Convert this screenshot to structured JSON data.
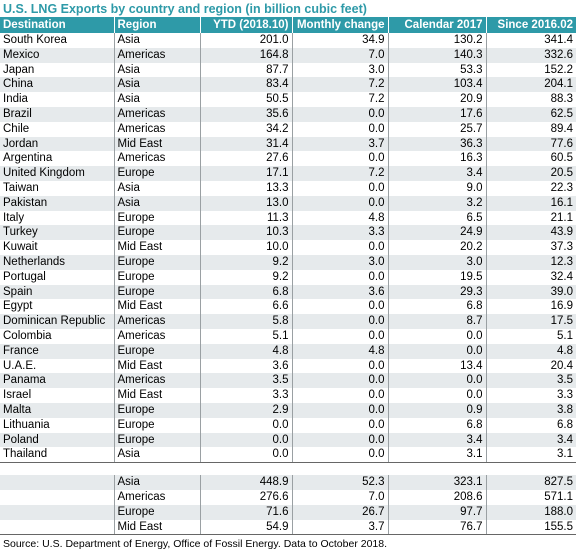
{
  "title": "U.S. LNG Exports by country and region (in billion cubic feet)",
  "headers": [
    "Destination",
    "Region",
    "YTD (2018.10)",
    "Monthly change",
    "Calendar 2017",
    "Since 2016.02"
  ],
  "rows": [
    [
      "South Korea",
      "Asia",
      "201.0",
      "34.9",
      "130.2",
      "341.4"
    ],
    [
      "Mexico",
      "Americas",
      "164.8",
      "7.0",
      "140.3",
      "332.6"
    ],
    [
      "Japan",
      "Asia",
      "87.7",
      "3.0",
      "53.3",
      "152.2"
    ],
    [
      "China",
      "Asia",
      "83.4",
      "7.2",
      "103.4",
      "204.1"
    ],
    [
      "India",
      "Asia",
      "50.5",
      "7.2",
      "20.9",
      "88.3"
    ],
    [
      "Brazil",
      "Americas",
      "35.6",
      "0.0",
      "17.6",
      "62.5"
    ],
    [
      "Chile",
      "Americas",
      "34.2",
      "0.0",
      "25.7",
      "89.4"
    ],
    [
      "Jordan",
      "Mid East",
      "31.4",
      "3.7",
      "36.3",
      "77.6"
    ],
    [
      "Argentina",
      "Americas",
      "27.6",
      "0.0",
      "16.3",
      "60.5"
    ],
    [
      "United Kingdom",
      "Europe",
      "17.1",
      "7.2",
      "3.4",
      "20.5"
    ],
    [
      "Taiwan",
      "Asia",
      "13.3",
      "0.0",
      "9.0",
      "22.3"
    ],
    [
      "Pakistan",
      "Asia",
      "13.0",
      "0.0",
      "3.2",
      "16.1"
    ],
    [
      "Italy",
      "Europe",
      "11.3",
      "4.8",
      "6.5",
      "21.1"
    ],
    [
      "Turkey",
      "Europe",
      "10.3",
      "3.3",
      "24.9",
      "43.9"
    ],
    [
      "Kuwait",
      "Mid East",
      "10.0",
      "0.0",
      "20.2",
      "37.3"
    ],
    [
      "Netherlands",
      "Europe",
      "9.2",
      "3.0",
      "3.0",
      "12.3"
    ],
    [
      "Portugal",
      "Europe",
      "9.2",
      "0.0",
      "19.5",
      "32.4"
    ],
    [
      "Spain",
      "Europe",
      "6.8",
      "3.6",
      "29.3",
      "39.0"
    ],
    [
      "Egypt",
      "Mid East",
      "6.6",
      "0.0",
      "6.8",
      "16.9"
    ],
    [
      "Dominican Republic",
      "Americas",
      "5.8",
      "0.0",
      "8.7",
      "17.5"
    ],
    [
      "Colombia",
      "Americas",
      "5.1",
      "0.0",
      "0.0",
      "5.1"
    ],
    [
      "France",
      "Europe",
      "4.8",
      "4.8",
      "0.0",
      "4.8"
    ],
    [
      "U.A.E.",
      "Mid East",
      "3.6",
      "0.0",
      "13.4",
      "20.4"
    ],
    [
      "Panama",
      "Americas",
      "3.5",
      "0.0",
      "0.0",
      "3.5"
    ],
    [
      "Israel",
      "Mid East",
      "3.3",
      "0.0",
      "0.0",
      "3.3"
    ],
    [
      "Malta",
      "Europe",
      "2.9",
      "0.0",
      "0.9",
      "3.8"
    ],
    [
      "Lithuania",
      "Europe",
      "0.0",
      "0.0",
      "6.8",
      "6.8"
    ],
    [
      "Poland",
      "Europe",
      "0.0",
      "0.0",
      "3.4",
      "3.4"
    ],
    [
      "Thailand",
      "Asia",
      "0.0",
      "0.0",
      "3.1",
      "3.1"
    ]
  ],
  "totals": [
    [
      "",
      "Asia",
      "448.9",
      "52.3",
      "323.1",
      "827.5"
    ],
    [
      "",
      "Americas",
      "276.6",
      "7.0",
      "208.6",
      "571.1"
    ],
    [
      "",
      "Europe",
      "71.6",
      "26.7",
      "97.7",
      "188.0"
    ],
    [
      "",
      "Mid East",
      "54.9",
      "3.7",
      "76.7",
      "155.5"
    ]
  ],
  "source": "Source: U.S. Department of Energy, Office of Fossil Energy. Data to October 2018."
}
